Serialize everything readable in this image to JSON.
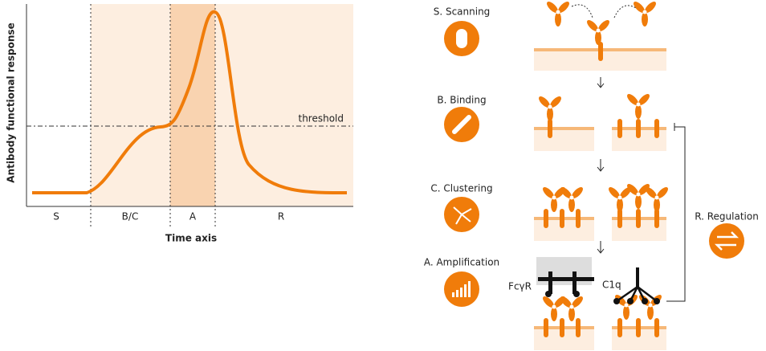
{
  "response_panel": {
    "y_label": "Antibody functional response",
    "x_label": "Time axis",
    "threshold_label": "threshold",
    "phases": [
      "S",
      "B/C",
      "A",
      "R"
    ]
  },
  "steps": [
    {
      "label": "S. Scanning"
    },
    {
      "label": "B. Binding"
    },
    {
      "label": "C. Clustering"
    },
    {
      "label": "A. Amplification"
    }
  ],
  "receptors": {
    "fc": "FcγR",
    "c1q": "C1q"
  },
  "regulation": {
    "label": "R. Regulation"
  }
}
